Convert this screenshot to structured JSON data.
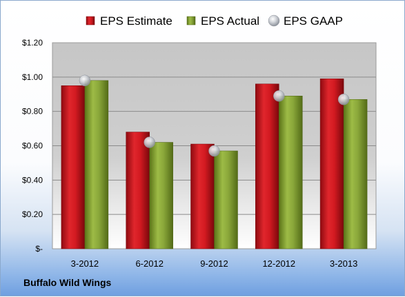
{
  "company": "Buffalo Wild Wings",
  "chart_data": {
    "type": "bar",
    "categories": [
      "3-2012",
      "6-2012",
      "9-2012",
      "12-2012",
      "3-2013"
    ],
    "series": [
      {
        "name": "EPS Estimate",
        "type": "bar",
        "color": "#c0141c",
        "values": [
          0.95,
          0.68,
          0.61,
          0.96,
          0.99
        ]
      },
      {
        "name": "EPS Actual",
        "type": "bar",
        "color": "#7d9a2c",
        "values": [
          0.98,
          0.62,
          0.57,
          0.89,
          0.87
        ]
      },
      {
        "name": "EPS GAAP",
        "type": "scatter",
        "color": "#b9bdc4",
        "values": [
          0.98,
          0.62,
          0.57,
          0.89,
          0.87
        ]
      }
    ],
    "yticks": [
      "$-",
      "$0.20",
      "$0.40",
      "$0.60",
      "$0.80",
      "$1.00",
      "$1.20"
    ],
    "ylim": [
      0,
      1.2
    ],
    "grid": true,
    "legend_position": "top"
  }
}
